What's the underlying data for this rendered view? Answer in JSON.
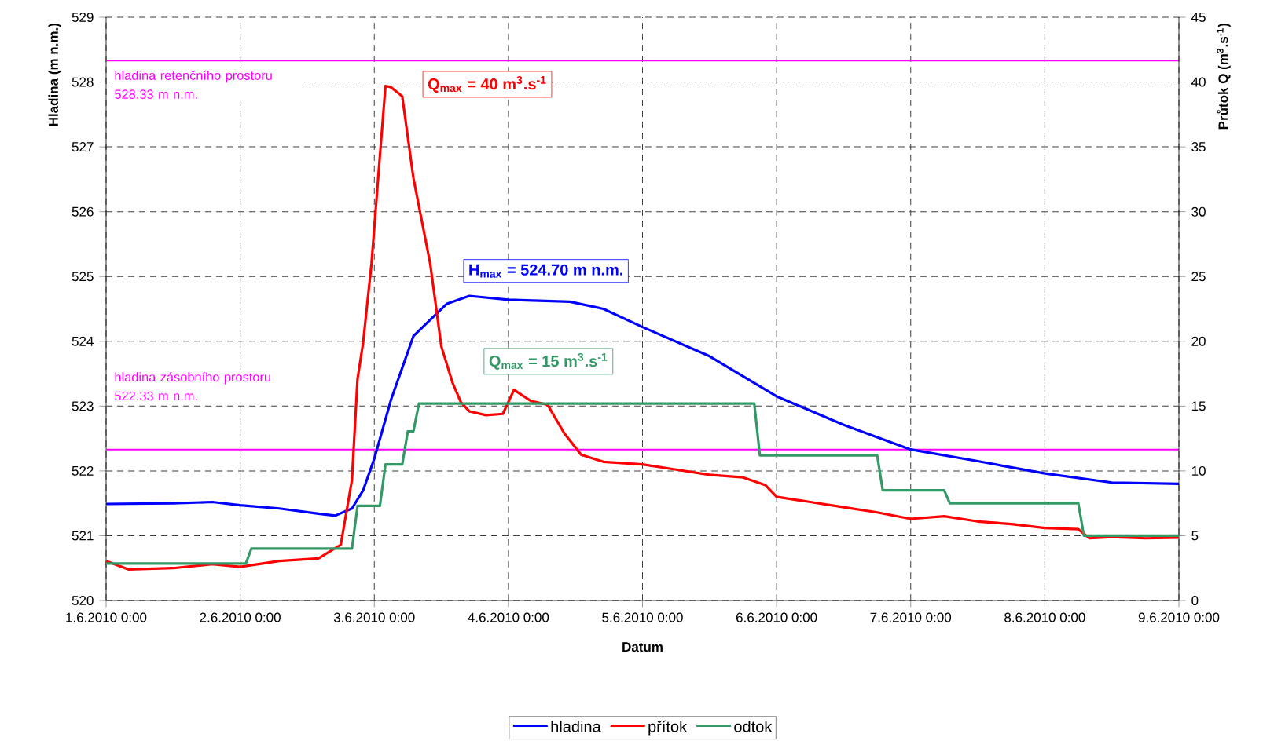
{
  "chart_data": {
    "type": "line",
    "xlabel": "Datum",
    "ylabel": "Hladina (m n.m.)",
    "y2label": "Průtok Q (m$^{3}$.s$^{-1}$)",
    "xlim": [
      "2010-06-01T00:00",
      "2010-06-09T00:00"
    ],
    "xticks": [
      {
        "value": "2010-06-01T00:00",
        "label": "1.6.2010 0:00"
      },
      {
        "value": "2010-06-02T00:00",
        "label": "2.6.2010 0:00"
      },
      {
        "value": "2010-06-03T00:00",
        "label": "3.6.2010 0:00"
      },
      {
        "value": "2010-06-04T00:00",
        "label": "4.6.2010 0:00"
      },
      {
        "value": "2010-06-05T00:00",
        "label": "5.6.2010 0:00"
      },
      {
        "value": "2010-06-06T00:00",
        "label": "6.6.2010 0:00"
      },
      {
        "value": "2010-06-07T00:00",
        "label": "7.6.2010 0:00"
      },
      {
        "value": "2010-06-08T00:00",
        "label": "8.6.2010 0:00"
      },
      {
        "value": "2010-06-09T00:00",
        "label": "9.6.2010 0:00"
      }
    ],
    "ylim": [
      520,
      529
    ],
    "yticks": [
      520,
      521,
      522,
      523,
      524,
      525,
      526,
      527,
      528,
      529
    ],
    "y2lim": [
      0,
      45
    ],
    "y2ticks": [
      0,
      5,
      10,
      15,
      20,
      25,
      30,
      35,
      40,
      45
    ],
    "grid": true,
    "legend": "bottom",
    "series": [
      {
        "name": "hladina",
        "color": "#0000ff",
        "x": [
          "2010-06-01T00:00",
          "2010-06-01T12:00",
          "2010-06-01T19:00",
          "2010-06-02T00:00",
          "2010-06-02T07:00",
          "2010-06-02T14:00",
          "2010-06-02T17:00",
          "2010-06-02T20:00",
          "2010-06-02T22:00",
          "2010-06-03T00:00",
          "2010-06-03T03:00",
          "2010-06-03T07:00",
          "2010-06-03T13:00",
          "2010-06-03T17:00",
          "2010-06-04T00:00",
          "2010-06-04T11:00",
          "2010-06-04T17:00",
          "2010-06-05T00:00",
          "2010-06-05T12:00",
          "2010-06-06T00:00",
          "2010-06-06T12:00",
          "2010-06-07T00:00",
          "2010-06-07T12:00",
          "2010-06-08T00:00",
          "2010-06-08T12:00",
          "2010-06-09T00:00"
        ],
        "values": [
          521.49,
          521.5,
          521.52,
          521.47,
          521.42,
          521.34,
          521.31,
          521.42,
          521.7,
          522.19,
          523.1,
          524.08,
          524.58,
          524.7,
          524.64,
          524.61,
          524.5,
          524.22,
          523.77,
          523.15,
          522.71,
          522.33,
          522.15,
          521.96,
          521.82,
          521.8
        ]
      },
      {
        "name": "přítok",
        "color": "#ff0000",
        "axis": "y2",
        "x": [
          "2010-06-01T00:00",
          "2010-06-01T04:00",
          "2010-06-01T12:00",
          "2010-06-01T19:00",
          "2010-06-02T00:00",
          "2010-06-02T07:00",
          "2010-06-02T14:00",
          "2010-06-02T18:00",
          "2010-06-02T20:00",
          "2010-06-02T21:00",
          "2010-06-02T22:00",
          "2010-06-02T23:30",
          "2010-06-03T01:00",
          "2010-06-03T02:00",
          "2010-06-03T03:00",
          "2010-06-03T05:00",
          "2010-06-03T07:00",
          "2010-06-03T10:00",
          "2010-06-03T12:00",
          "2010-06-03T14:00",
          "2010-06-03T15:30",
          "2010-06-03T17:00",
          "2010-06-03T20:00",
          "2010-06-03T23:00",
          "2010-06-04T01:00",
          "2010-06-04T04:00",
          "2010-06-04T07:00",
          "2010-06-04T10:00",
          "2010-06-04T13:00",
          "2010-06-04T17:00",
          "2010-06-05T00:00",
          "2010-06-05T06:00",
          "2010-06-05T12:00",
          "2010-06-05T18:00",
          "2010-06-05T22:00",
          "2010-06-06T00:00",
          "2010-06-06T06:00",
          "2010-06-06T12:00",
          "2010-06-06T18:00",
          "2010-06-07T00:00",
          "2010-06-07T06:00",
          "2010-06-07T12:00",
          "2010-06-07T18:00",
          "2010-06-08T00:00",
          "2010-06-08T06:00",
          "2010-06-08T08:00",
          "2010-06-08T12:00",
          "2010-06-08T18:00",
          "2010-06-09T00:00"
        ],
        "values": [
          3.05,
          2.4,
          2.5,
          2.8,
          2.6,
          3.05,
          3.25,
          4.3,
          9.3,
          17.1,
          19.9,
          26,
          34.3,
          39.7,
          39.6,
          38.9,
          32.6,
          26,
          19.6,
          16.8,
          15.3,
          14.6,
          14.3,
          14.4,
          16.25,
          15.4,
          15.1,
          12.9,
          11.25,
          10.7,
          10.5,
          10.1,
          9.7,
          9.5,
          8.9,
          8.0,
          7.6,
          7.2,
          6.8,
          6.3,
          6.5,
          6.1,
          5.9,
          5.6,
          5.5,
          4.8,
          4.9,
          4.8,
          4.85
        ]
      },
      {
        "name": "odtok",
        "color": "#339966",
        "axis": "y2",
        "x": [
          "2010-06-01T00:00",
          "2010-06-02T01:00",
          "2010-06-02T02:00",
          "2010-06-02T20:00",
          "2010-06-02T21:00",
          "2010-06-03T01:00",
          "2010-06-03T02:00",
          "2010-06-03T05:00",
          "2010-06-03T06:00",
          "2010-06-03T07:00",
          "2010-06-03T08:00",
          "2010-06-05T20:00",
          "2010-06-05T21:00",
          "2010-06-06T18:00",
          "2010-06-06T19:00",
          "2010-06-07T06:00",
          "2010-06-07T07:00",
          "2010-06-08T06:00",
          "2010-06-08T07:00",
          "2010-06-09T00:00"
        ],
        "values": [
          2.85,
          2.85,
          4.0,
          4.0,
          7.3,
          7.3,
          10.5,
          10.5,
          13.05,
          13.05,
          15.2,
          15.2,
          11.2,
          11.2,
          8.5,
          8.5,
          7.5,
          7.5,
          5.0,
          5.0
        ]
      }
    ],
    "ref_lines": [
      {
        "axis": "y",
        "value": 528.33,
        "label": "hladina retenčního prostoru 528.33 m n.m.",
        "color": "#ff00ff"
      },
      {
        "axis": "y",
        "value": 522.33,
        "label": "hladina zásobního prostoru 522.33 m n.m.",
        "color": "#ff00ff"
      }
    ],
    "annotations": [
      "Q$_{max}$ = 40 m$^{3}$.s$^{-1}$",
      "H$_{max}$ = 524.70 m n.m.",
      "Q$_{max}$ = 15 m$^{3}$.s$^{-1}$"
    ]
  }
}
